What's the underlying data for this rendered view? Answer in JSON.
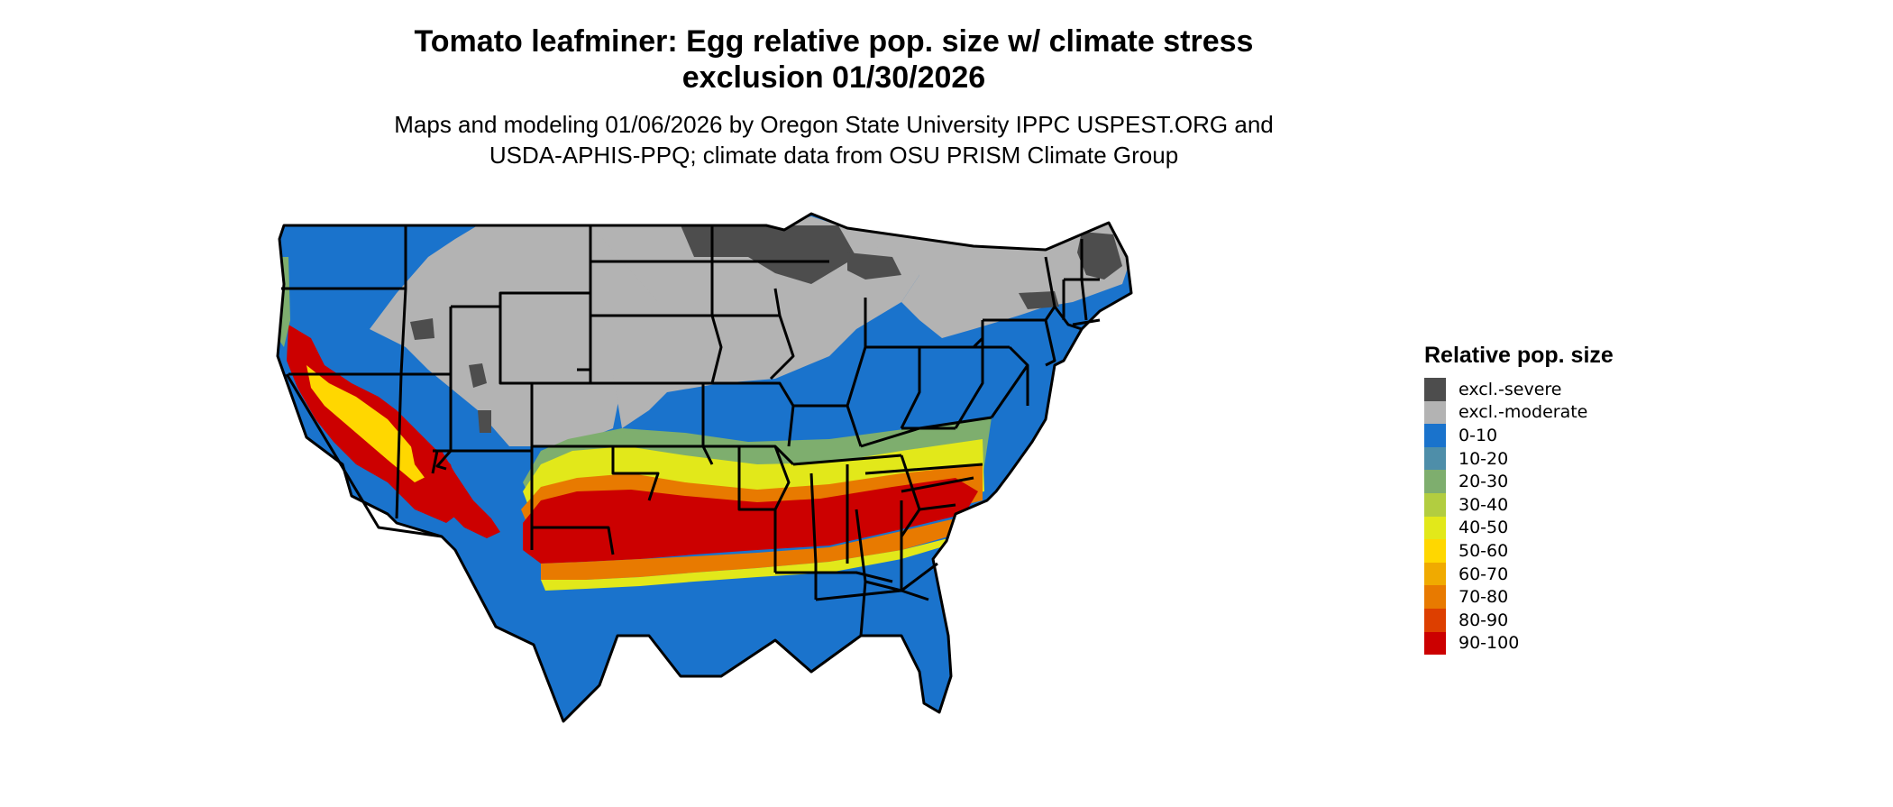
{
  "header": {
    "title_line1": "Tomato leafminer: Egg relative pop. size w/ climate stress",
    "title_line2": "exclusion 01/30/2026",
    "subtitle_line1": "Maps and modeling 01/06/2026 by Oregon State University IPPC USPEST.ORG and",
    "subtitle_line2": "USDA-APHIS-PPQ; climate data from OSU PRISM Climate Group"
  },
  "legend": {
    "title": "Relative pop. size",
    "items": [
      {
        "label": "excl.-severe",
        "color": "#4d4d4d"
      },
      {
        "label": "excl.-moderate",
        "color": "#b3b3b3"
      },
      {
        "label": "0-10",
        "color": "#1a73cc"
      },
      {
        "label": "10-20",
        "color": "#4e8ea9"
      },
      {
        "label": "20-30",
        "color": "#7eae6e"
      },
      {
        "label": "30-40",
        "color": "#b2cd40"
      },
      {
        "label": "40-50",
        "color": "#e2e81a"
      },
      {
        "label": "50-60",
        "color": "#ffd700"
      },
      {
        "label": "60-70",
        "color": "#f0aa00"
      },
      {
        "label": "70-80",
        "color": "#e87a00"
      },
      {
        "label": "80-90",
        "color": "#dd3f00"
      },
      {
        "label": "90-100",
        "color": "#cc0000"
      }
    ]
  },
  "map": {
    "region": "contiguous-united-states",
    "boundaries": "state-borders",
    "colors": {
      "severe": "#4d4d4d",
      "moderate": "#b3b3b3",
      "low": "#1a73cc",
      "b10_20": "#4e8ea9",
      "b20_30": "#7eae6e",
      "b30_40": "#b2cd40",
      "b40_50": "#e2e81a",
      "b50_60": "#ffd700",
      "b70_80": "#e87a00",
      "high": "#cc0000",
      "border": "#000000"
    }
  }
}
